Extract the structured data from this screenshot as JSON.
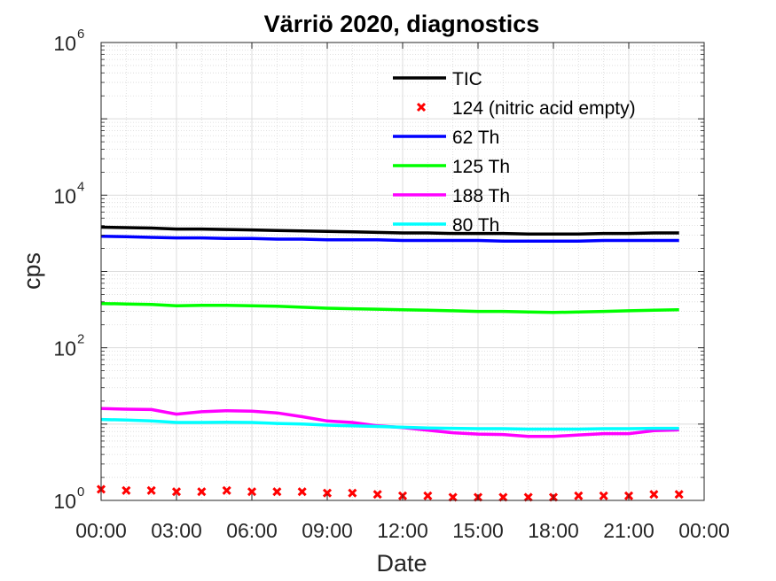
{
  "chart_data": {
    "type": "line",
    "title": "Värriö 2020, diagnostics",
    "xlabel": "Date",
    "ylabel": "cps",
    "yscale": "log",
    "ylim": [
      1,
      1000000
    ],
    "xlim_hours": [
      0,
      24
    ],
    "grid": true,
    "minor_grid": true,
    "legend_placement": "top-right (inside axes, overlapping lines)",
    "x_tick_labels": [
      "00:00",
      "03:00",
      "06:00",
      "09:00",
      "12:00",
      "15:00",
      "18:00",
      "21:00",
      "00:00"
    ],
    "y_ticks": [
      {
        "base": "10",
        "exp": "0",
        "value": 1
      },
      {
        "base": "10",
        "exp": "2",
        "value": 100
      },
      {
        "base": "10",
        "exp": "4",
        "value": 10000
      },
      {
        "base": "10",
        "exp": "6",
        "value": 1000000
      }
    ],
    "x_hours": [
      0,
      1,
      2,
      3,
      4,
      5,
      6,
      7,
      8,
      9,
      10,
      11,
      12,
      13,
      14,
      15,
      16,
      17,
      18,
      19,
      20,
      21,
      22,
      23
    ],
    "series": [
      {
        "name": "TIC",
        "style": "line",
        "color": "#000000",
        "values": [
          3800,
          3750,
          3700,
          3600,
          3600,
          3550,
          3500,
          3450,
          3400,
          3350,
          3300,
          3250,
          3200,
          3200,
          3150,
          3150,
          3150,
          3100,
          3100,
          3100,
          3150,
          3150,
          3200,
          3200
        ]
      },
      {
        "name": "124 (nitric acid empty)",
        "style": "marker-x",
        "color": "#ff0000",
        "values": [
          1.4,
          1.35,
          1.35,
          1.3,
          1.3,
          1.35,
          1.3,
          1.3,
          1.3,
          1.25,
          1.25,
          1.2,
          1.15,
          1.15,
          1.1,
          1.1,
          1.1,
          1.1,
          1.1,
          1.15,
          1.15,
          1.15,
          1.2,
          1.2
        ]
      },
      {
        "name": "62 Th",
        "style": "line",
        "color": "#0000ff",
        "values": [
          2900,
          2850,
          2800,
          2750,
          2750,
          2700,
          2700,
          2650,
          2650,
          2600,
          2600,
          2600,
          2550,
          2550,
          2550,
          2550,
          2500,
          2500,
          2500,
          2500,
          2550,
          2550,
          2550,
          2550
        ]
      },
      {
        "name": "125 Th",
        "style": "line",
        "color": "#00ff00",
        "values": [
          380,
          375,
          370,
          355,
          360,
          360,
          355,
          350,
          340,
          330,
          325,
          320,
          315,
          310,
          305,
          300,
          300,
          295,
          290,
          295,
          300,
          305,
          310,
          315
        ]
      },
      {
        "name": "188 Th",
        "style": "line",
        "color": "#ff00ff",
        "values": [
          16,
          15.7,
          15.5,
          13.5,
          14.5,
          15,
          14.8,
          14,
          12.5,
          11,
          10.5,
          9.5,
          9,
          8.3,
          7.7,
          7.4,
          7.3,
          6.9,
          6.9,
          7.2,
          7.5,
          7.5,
          8.2,
          8.4
        ]
      },
      {
        "name": "80 Th",
        "style": "line",
        "color": "#00ffff",
        "values": [
          11.5,
          11.3,
          11.0,
          10.5,
          10.5,
          10.6,
          10.5,
          10.2,
          10.0,
          9.7,
          9.5,
          9.3,
          9.1,
          8.9,
          8.8,
          8.7,
          8.7,
          8.6,
          8.6,
          8.6,
          8.7,
          8.7,
          8.8,
          8.8
        ]
      }
    ]
  }
}
